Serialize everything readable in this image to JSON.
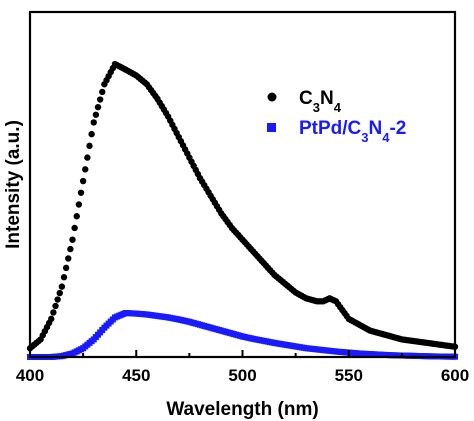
{
  "chart_data": {
    "type": "scatter",
    "xlabel": "Wavelength (nm)",
    "ylabel": "Intensity (a.u.)",
    "xlim": [
      400,
      600
    ],
    "ylim": [
      0,
      1.0
    ],
    "x_ticks": [
      "400",
      "450",
      "500",
      "550",
      "600"
    ],
    "y_ticks_labeled": false,
    "grid": false,
    "legend_position": "top-right",
    "series": [
      {
        "name": "C3N4",
        "legend_parts": [
          {
            "text": "C",
            "sub": false
          },
          {
            "text": "3",
            "sub": true
          },
          {
            "text": "N",
            "sub": false
          },
          {
            "text": "4",
            "sub": true
          }
        ],
        "color": "#000000",
        "marker": "circle",
        "x": [
          400,
          405,
          410,
          415,
          420,
          425,
          430,
          435,
          440,
          445,
          450,
          455,
          460,
          465,
          470,
          475,
          480,
          485,
          490,
          495,
          500,
          505,
          510,
          515,
          520,
          525,
          530,
          535,
          538,
          541,
          544,
          547,
          550,
          555,
          560,
          565,
          570,
          575,
          580,
          585,
          590,
          595,
          600
        ],
        "y": [
          0.03,
          0.06,
          0.13,
          0.24,
          0.4,
          0.6,
          0.8,
          0.93,
          0.999,
          0.98,
          0.96,
          0.93,
          0.88,
          0.82,
          0.75,
          0.68,
          0.61,
          0.55,
          0.49,
          0.44,
          0.4,
          0.36,
          0.32,
          0.28,
          0.25,
          0.22,
          0.2,
          0.19,
          0.19,
          0.2,
          0.19,
          0.16,
          0.13,
          0.11,
          0.09,
          0.08,
          0.07,
          0.06,
          0.055,
          0.05,
          0.045,
          0.04,
          0.035
        ]
      },
      {
        "name": "PtPd/C3N4-2",
        "legend_parts": [
          {
            "text": "PtPd/C",
            "sub": false
          },
          {
            "text": "3",
            "sub": true
          },
          {
            "text": "N",
            "sub": false
          },
          {
            "text": "4",
            "sub": true
          },
          {
            "text": "-2",
            "sub": false
          }
        ],
        "color": "#1a1aff",
        "marker": "square",
        "x": [
          400,
          405,
          410,
          415,
          420,
          425,
          430,
          435,
          440,
          445,
          450,
          455,
          460,
          465,
          470,
          475,
          480,
          485,
          490,
          495,
          500,
          505,
          510,
          515,
          520,
          525,
          530,
          535,
          540,
          545,
          550,
          555,
          560,
          565,
          570,
          575,
          580,
          585,
          590,
          595,
          600
        ],
        "y": [
          0.0,
          0.0,
          0.0,
          0.003,
          0.012,
          0.03,
          0.06,
          0.1,
          0.135,
          0.15,
          0.148,
          0.145,
          0.14,
          0.135,
          0.128,
          0.12,
          0.11,
          0.1,
          0.09,
          0.08,
          0.07,
          0.062,
          0.055,
          0.048,
          0.042,
          0.036,
          0.03,
          0.026,
          0.022,
          0.018,
          0.015,
          0.012,
          0.01,
          0.008,
          0.006,
          0.005,
          0.004,
          0.003,
          0.002,
          0.0015,
          0.001
        ]
      }
    ]
  }
}
